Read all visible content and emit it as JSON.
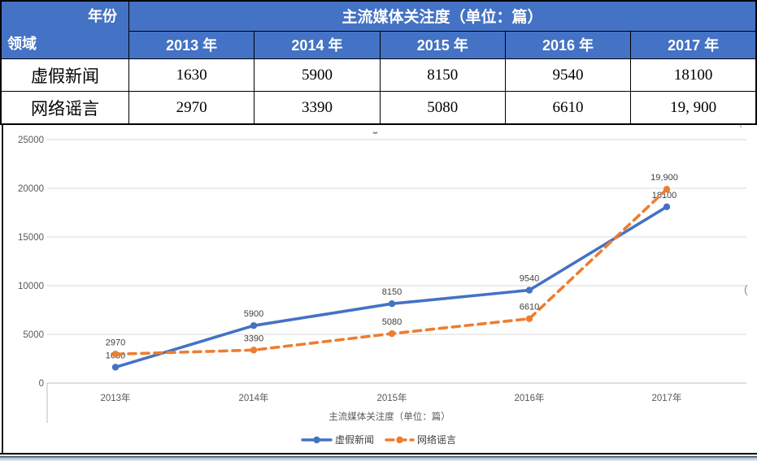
{
  "table": {
    "corner_top": "年份",
    "corner_bottom": "领域",
    "title": "主流媒体关注度（单位：篇）",
    "years": [
      "2013 年",
      "2014 年",
      "2015 年",
      "2016 年",
      "2017 年"
    ],
    "rows": [
      {
        "label": "虚假新闻",
        "values": [
          "1630",
          "5900",
          "8150",
          "9540",
          "18100"
        ]
      },
      {
        "label": "网络谣言",
        "values": [
          "2970",
          "3390",
          "5080",
          "6610",
          "19, 900"
        ]
      }
    ]
  },
  "chart_data": {
    "type": "line",
    "categories": [
      "2013年",
      "2014年",
      "2015年",
      "2016年",
      "2017年"
    ],
    "series": [
      {
        "name": "虚假新闻",
        "values": [
          1630,
          5900,
          8150,
          9540,
          18100
        ],
        "point_labels": [
          "1630",
          "5900",
          "8150",
          "9540",
          "18100"
        ],
        "color": "#4472C4",
        "line_style": "solid",
        "marker": "circle"
      },
      {
        "name": "网络谣言",
        "values": [
          2970,
          3390,
          5080,
          6610,
          19900
        ],
        "point_labels": [
          "2970",
          "3390",
          "5080",
          "6610",
          "19,900"
        ],
        "color": "#ED7D31",
        "line_style": "dashed",
        "marker": "circle"
      }
    ],
    "xlabel": "主流媒体关注度（单位：篇）",
    "ylim": [
      0,
      25000
    ],
    "yticks": [
      "0",
      "5000",
      "10000",
      "15000",
      "20000",
      "25000"
    ],
    "grid": true,
    "legend_position": "bottom"
  },
  "colors": {
    "header_blue": "#4472C4",
    "series_blue": "#4472C4",
    "series_orange": "#ED7D31",
    "gridline": "#D9D9D9",
    "axis_line": "#BFBFBF",
    "tick_text": "#595959",
    "data_label_text": "#3f3f3f"
  },
  "artifacts": {
    "stray_tick": "'",
    "stray_paren": "("
  }
}
